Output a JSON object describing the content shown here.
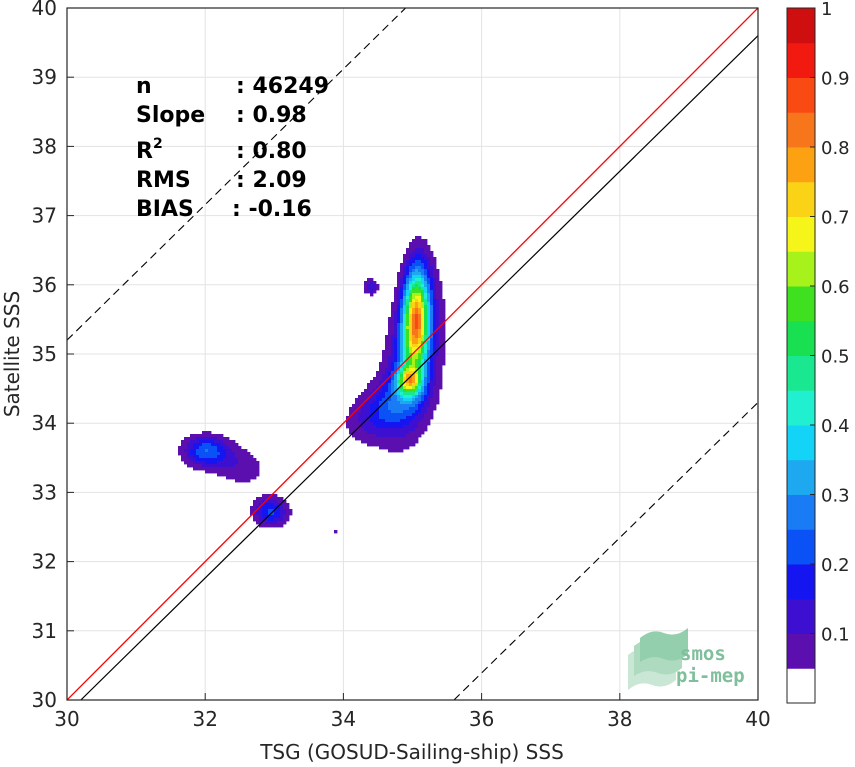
{
  "chart_data": {
    "type": "contour",
    "xlabel": "TSG (GOSUD-Sailing-ship) SSS",
    "ylabel": "Satellite SSS",
    "xlim": [
      30,
      40
    ],
    "ylim": [
      30,
      40
    ],
    "xticks": [
      "30",
      "32",
      "34",
      "36",
      "38",
      "40"
    ],
    "yticks": [
      "30",
      "31",
      "32",
      "33",
      "34",
      "35",
      "36",
      "37",
      "38",
      "39",
      "40"
    ],
    "grid": true,
    "stats": [
      {
        "label": "n",
        "value": ": 46249"
      },
      {
        "label": "Slope",
        "value": ": 0.98"
      },
      {
        "label": "R",
        "sup": "2",
        "value": ": 0.80"
      },
      {
        "label": "RMS",
        "value": ": 2.09"
      },
      {
        "label": "BIAS",
        "value": ": -0.16"
      }
    ],
    "lines": {
      "identity": {
        "color": "#ff0000",
        "x": [
          30,
          40
        ],
        "y": [
          30,
          40
        ]
      },
      "fit": {
        "color": "#000000",
        "x": [
          30.2,
          40
        ],
        "y": [
          30,
          39.6
        ]
      },
      "upper_dashed": {
        "color": "#000000",
        "x": [
          30,
          34.9
        ],
        "y": [
          35.2,
          40
        ]
      },
      "lower_dashed": {
        "color": "#000000",
        "x": [
          35.6,
          40
        ],
        "y": [
          30,
          34.3
        ]
      }
    },
    "density_blobs": [
      {
        "cx": 35.05,
        "cy": 35.5,
        "peak": 1.0
      },
      {
        "cx": 34.95,
        "cy": 34.6,
        "peak": 0.7
      },
      {
        "cx": 32.0,
        "cy": 33.6,
        "peak": 0.2
      },
      {
        "cx": 32.95,
        "cy": 32.7,
        "peak": 0.2
      },
      {
        "cx": 34.4,
        "cy": 35.97,
        "peak": 0.1
      }
    ],
    "colorbar": {
      "range": [
        0,
        1
      ],
      "ticks": [
        "0.1",
        "0.2",
        "0.3",
        "0.4",
        "0.5",
        "0.6",
        "0.7",
        "0.8",
        "0.9",
        "1"
      ],
      "colors": [
        "#ffffff",
        "#5a0fae",
        "#3d0fd0",
        "#1515f2",
        "#0a52f5",
        "#1a7cf5",
        "#1da8f0",
        "#13d4f6",
        "#20f0d0",
        "#1ae890",
        "#18e050",
        "#3fe020",
        "#a6f21a",
        "#f5f51a",
        "#fbd316",
        "#fca212",
        "#f7761c",
        "#f94a14",
        "#f21a10",
        "#cf0f0f",
        "#8a0505"
      ]
    }
  },
  "logo": {
    "line1": "smos",
    "line2": "pi-mep"
  }
}
